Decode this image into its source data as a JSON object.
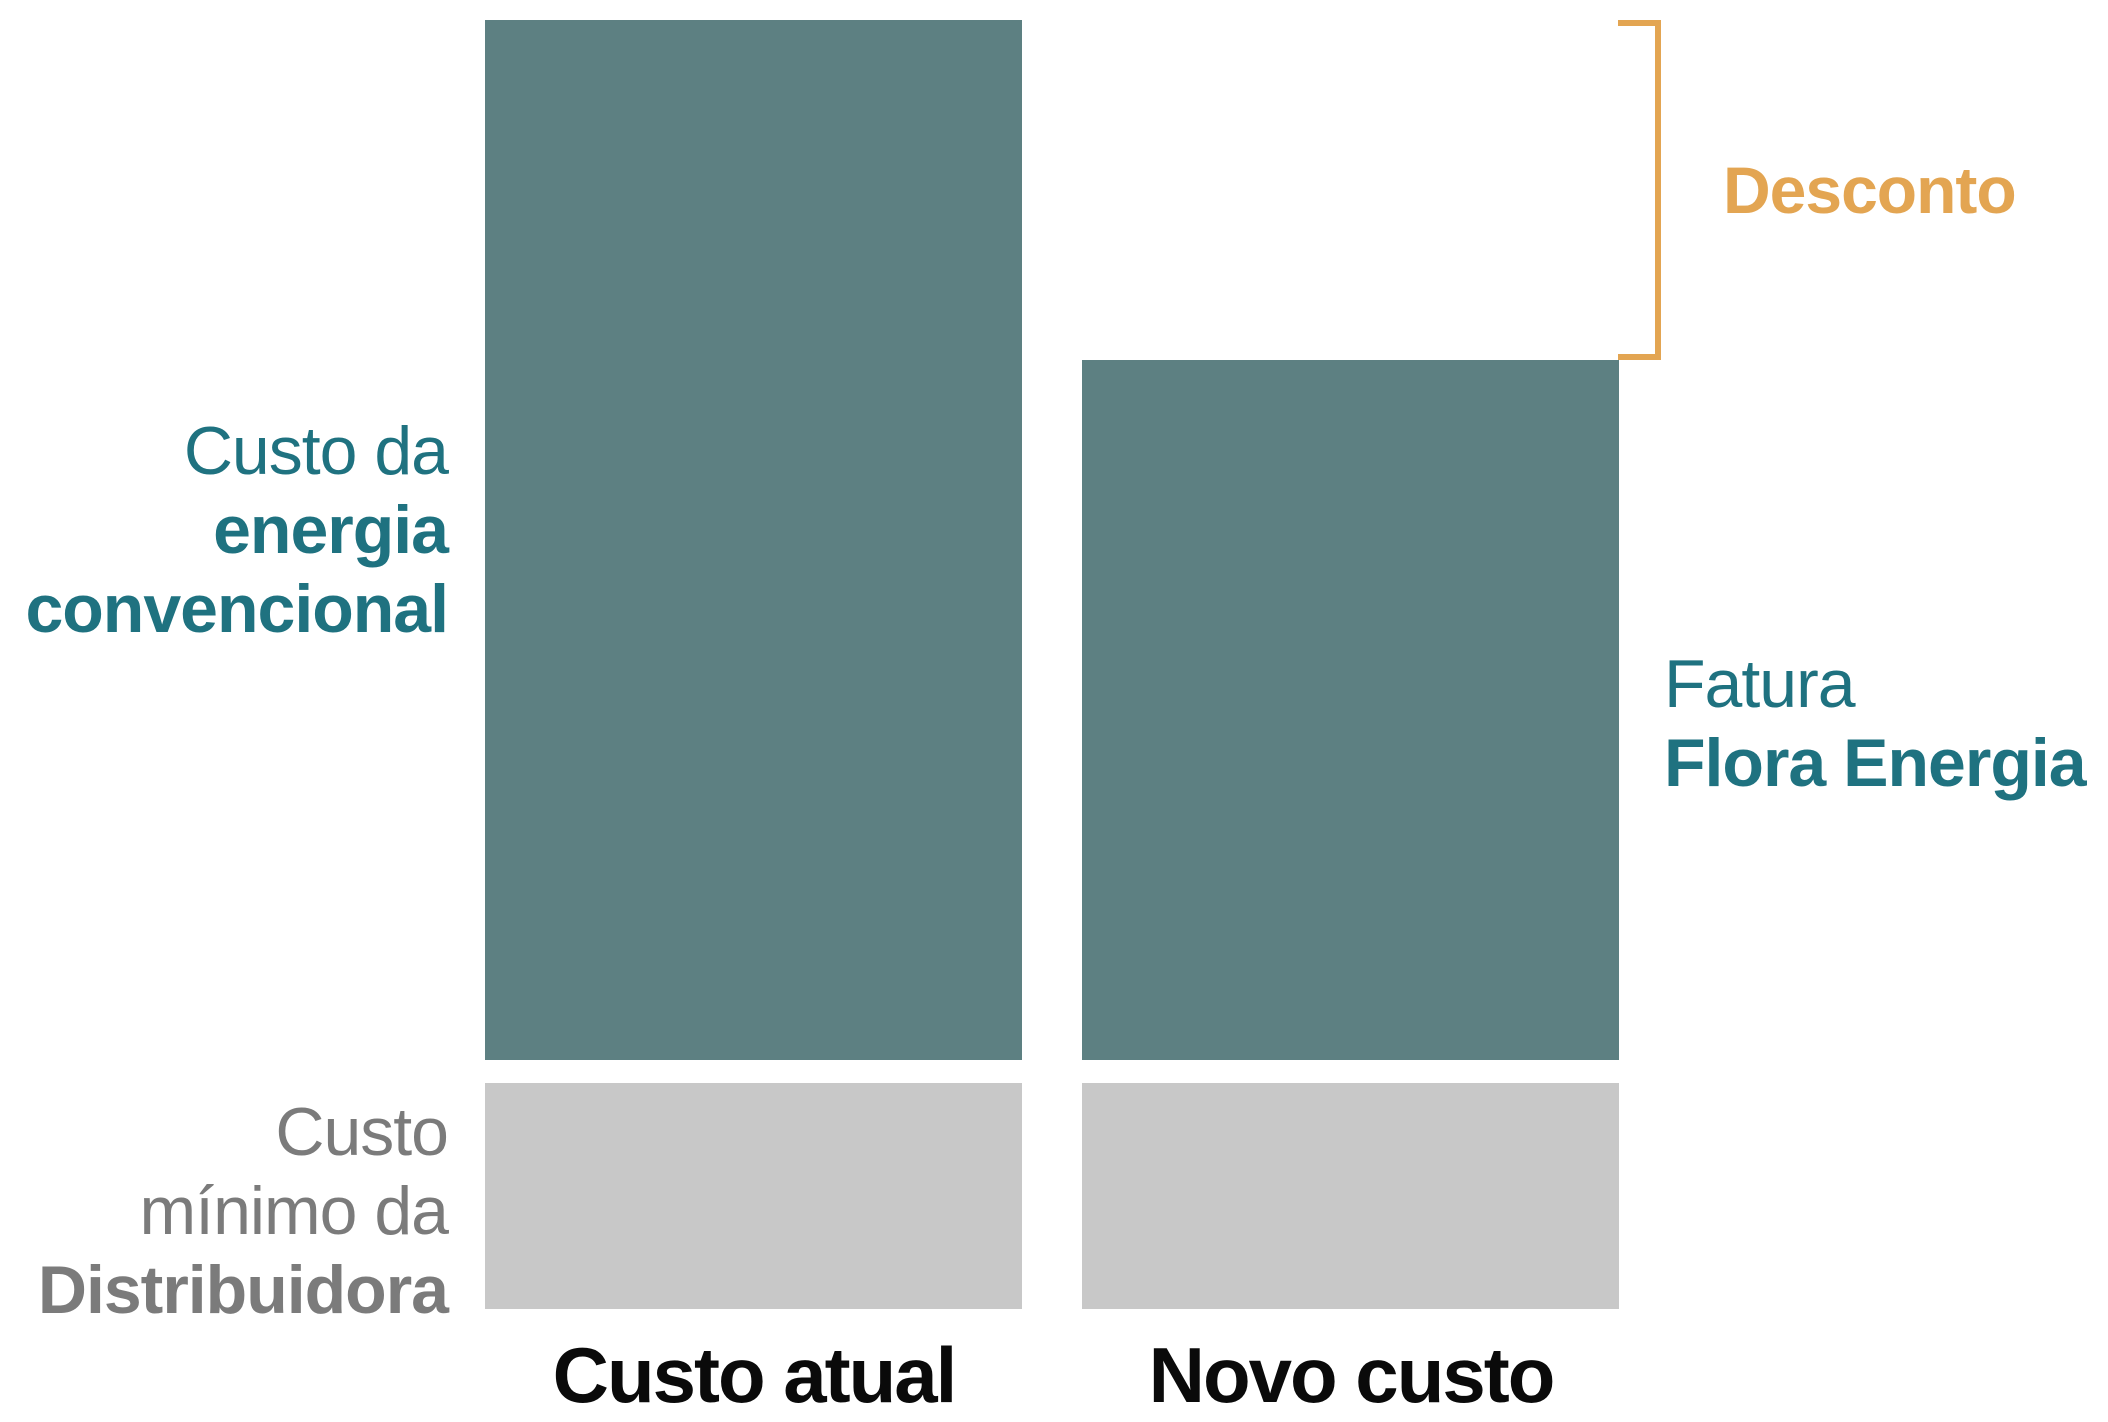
{
  "colors": {
    "energy_bar": "#5d8082",
    "distribution_bar": "#c8c8c8",
    "energy_label": "#1f7280",
    "distribution_label": "#7b7b7b",
    "discount": "#e3a552",
    "category_label": "#0a0a0a"
  },
  "labels": {
    "energia_convencional": {
      "line1": "Custo da",
      "line2": "energia",
      "line3": "convencional"
    },
    "distribuidora": {
      "line1": "Custo",
      "line2": "mínimo da",
      "line3": "Distribuidora"
    },
    "fatura": {
      "line1": "Fatura",
      "line2": "Flora Energia"
    },
    "desconto": "Desconto"
  },
  "categories": {
    "atual": "Custo atual",
    "novo": "Novo custo"
  }
}
